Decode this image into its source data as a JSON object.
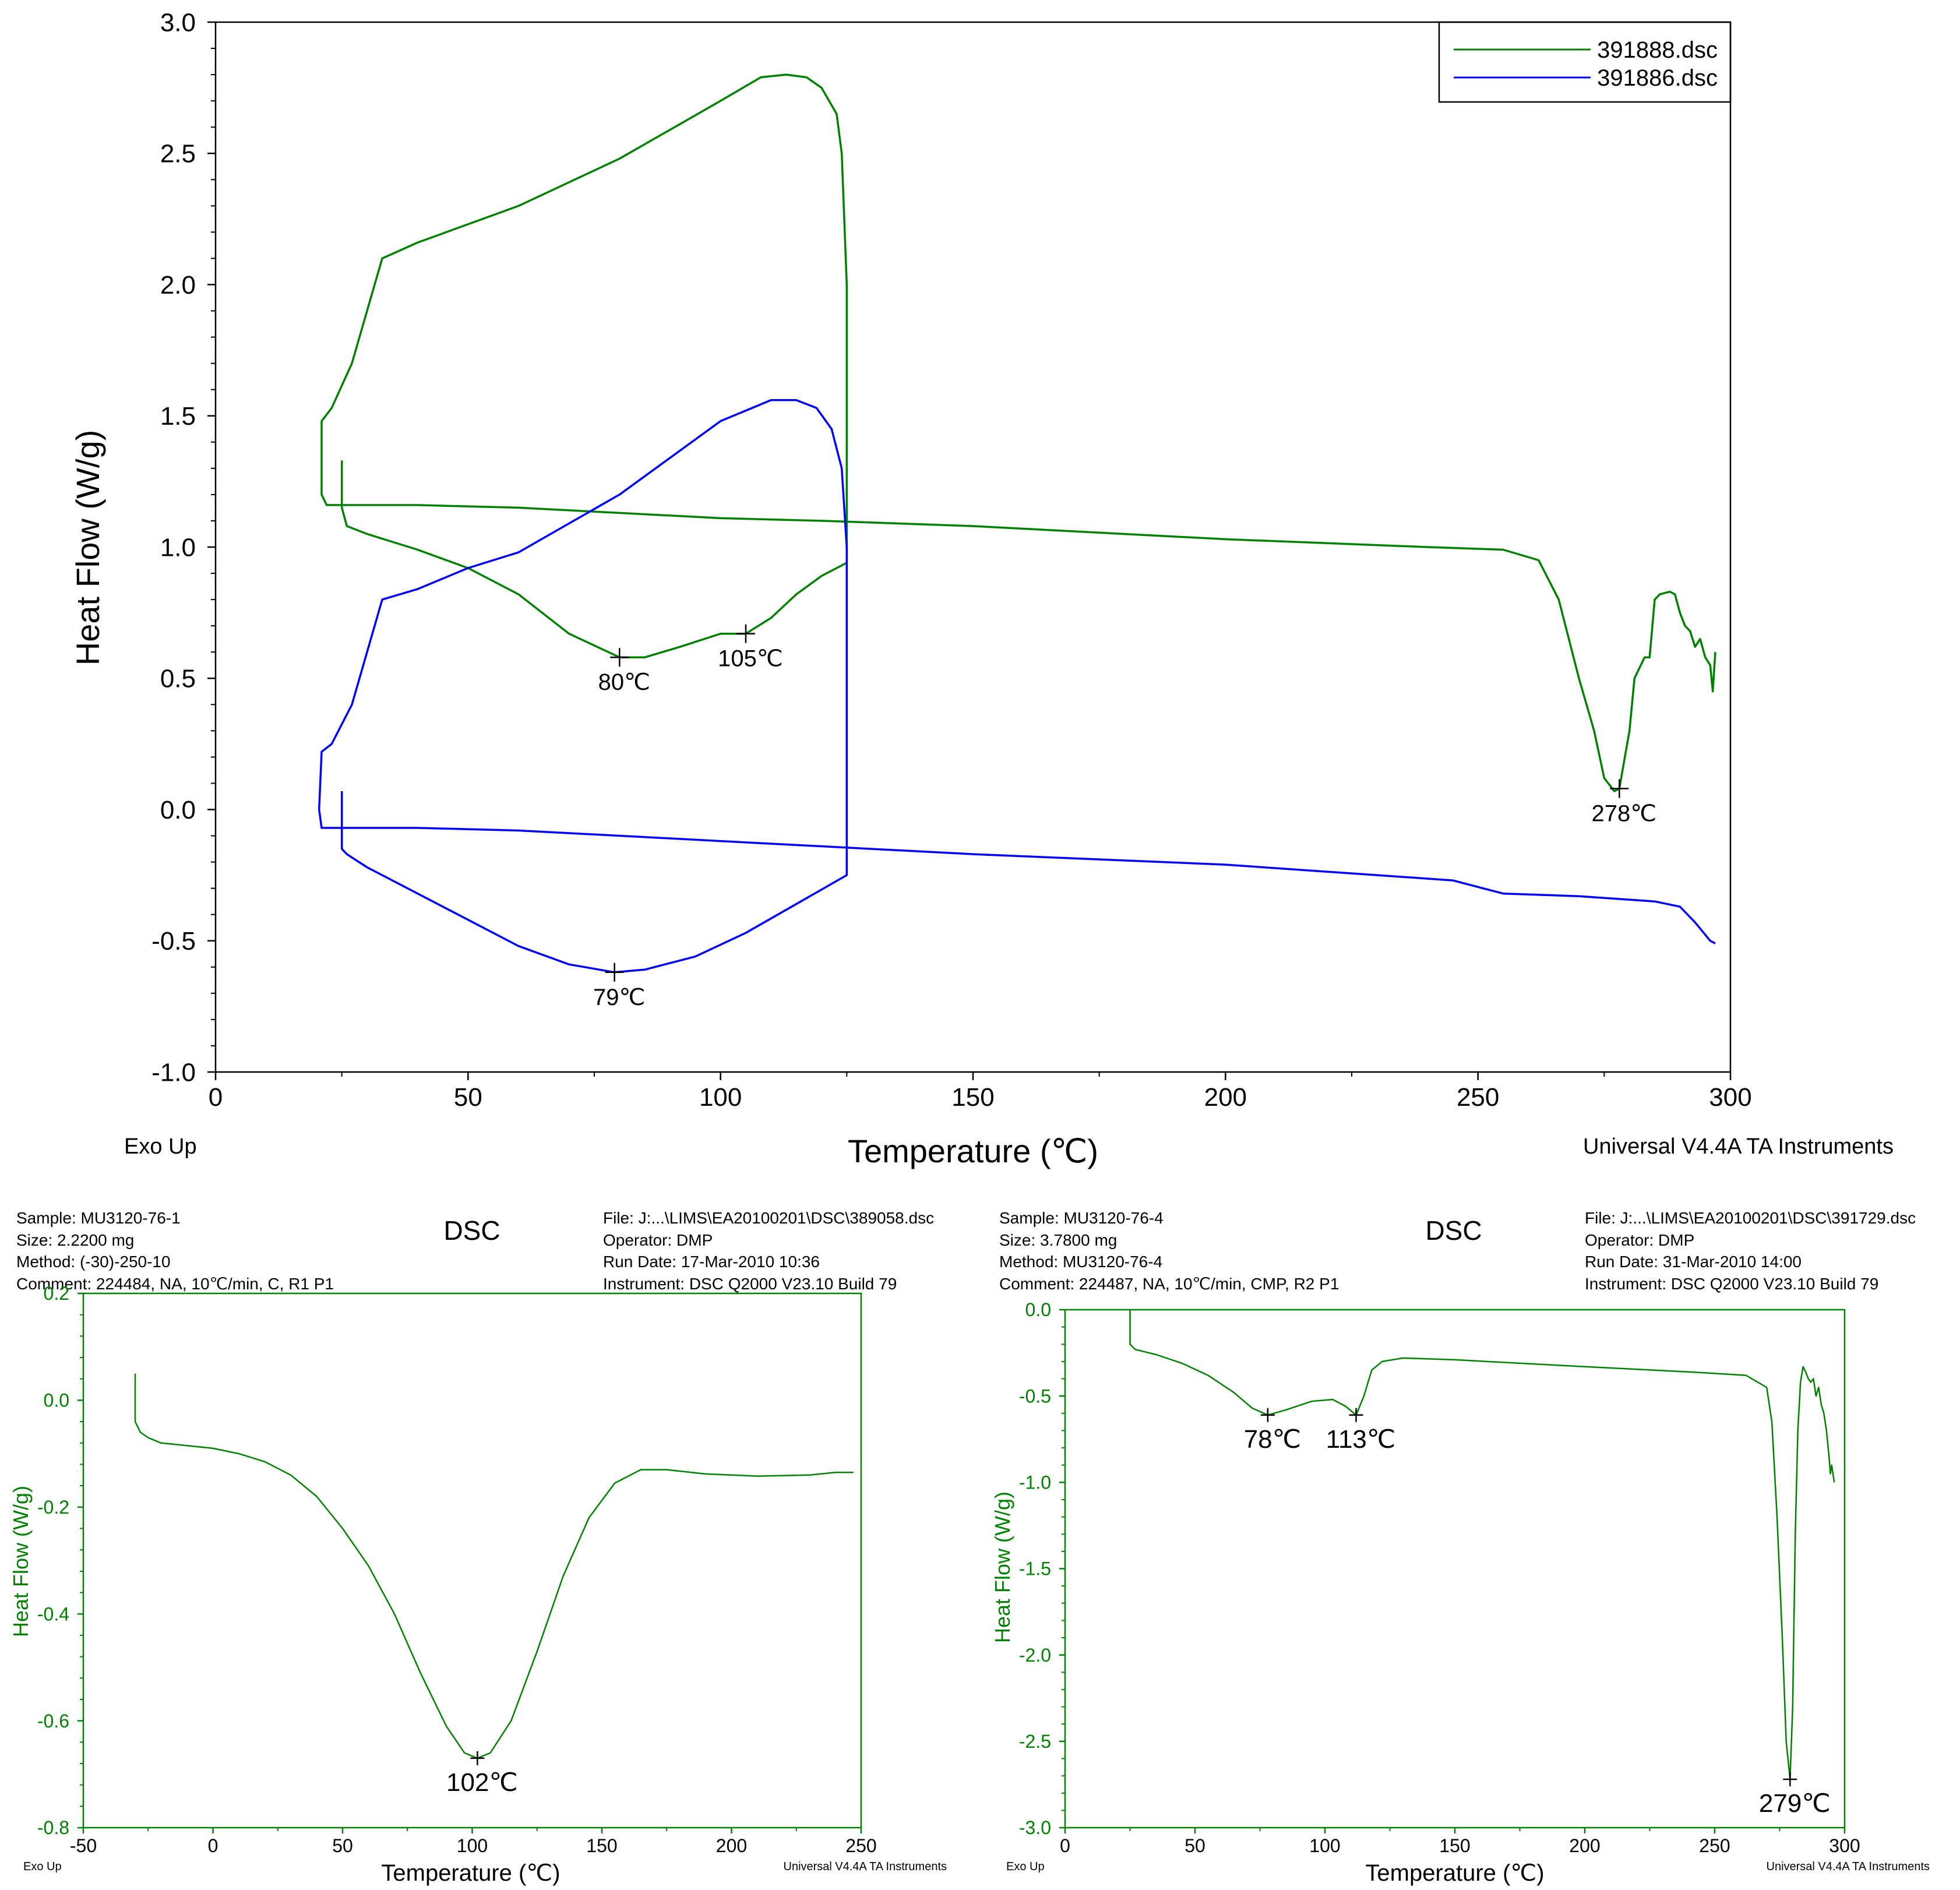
{
  "chart_data": [
    {
      "type": "line",
      "xlabel": "Temperature (℃)",
      "ylabel": "Heat Flow (W/g)",
      "xlim": [
        0,
        300
      ],
      "ylim": [
        -1.0,
        3.0
      ],
      "x_ticks": [
        "0",
        "50",
        "100",
        "150",
        "200",
        "250",
        "300"
      ],
      "y_ticks": [
        "-1.0",
        "-0.5",
        "0.0",
        "0.5",
        "1.0",
        "1.5",
        "2.0",
        "2.5",
        "3.0"
      ],
      "footer_left": "Exo Up",
      "footer_right": "Universal V4.4A TA Instruments",
      "legend_position": "top-right",
      "series": [
        {
          "name": "391888.dsc",
          "color": "#008000",
          "points": [
            [
              25,
              1.33
            ],
            [
              25,
              1.15
            ],
            [
              26,
              1.08
            ],
            [
              30,
              1.05
            ],
            [
              40,
              0.99
            ],
            [
              50,
              0.92
            ],
            [
              60,
              0.82
            ],
            [
              70,
              0.67
            ],
            [
              80,
              0.58
            ],
            [
              85,
              0.58
            ],
            [
              92,
              0.62
            ],
            [
              100,
              0.67
            ],
            [
              105,
              0.67
            ],
            [
              110,
              0.73
            ],
            [
              115,
              0.82
            ],
            [
              120,
              0.89
            ],
            [
              125,
              0.94
            ],
            [
              125,
              1.3
            ],
            [
              125,
              2.0
            ],
            [
              124,
              2.5
            ],
            [
              123,
              2.65
            ],
            [
              120,
              2.75
            ],
            [
              117,
              2.79
            ],
            [
              113,
              2.8
            ],
            [
              108,
              2.79
            ],
            [
              100,
              2.7
            ],
            [
              80,
              2.48
            ],
            [
              60,
              2.3
            ],
            [
              50,
              2.23
            ],
            [
              40,
              2.16
            ],
            [
              33,
              2.1
            ],
            [
              30,
              1.9
            ],
            [
              27,
              1.7
            ],
            [
              23,
              1.53
            ],
            [
              21,
              1.48
            ],
            [
              21,
              1.2
            ],
            [
              22,
              1.16
            ],
            [
              40,
              1.16
            ],
            [
              60,
              1.15
            ],
            [
              80,
              1.13
            ],
            [
              100,
              1.11
            ],
            [
              120,
              1.1
            ],
            [
              150,
              1.08
            ],
            [
              200,
              1.03
            ],
            [
              240,
              1.0
            ],
            [
              255,
              0.99
            ],
            [
              262,
              0.95
            ],
            [
              266,
              0.8
            ],
            [
              270,
              0.5
            ],
            [
              273,
              0.3
            ],
            [
              275,
              0.12
            ],
            [
              277,
              0.07
            ],
            [
              278,
              0.08
            ],
            [
              280,
              0.3
            ],
            [
              281,
              0.5
            ],
            [
              283,
              0.58
            ],
            [
              284,
              0.58
            ],
            [
              285,
              0.8
            ],
            [
              286,
              0.82
            ],
            [
              288,
              0.83
            ],
            [
              289,
              0.82
            ],
            [
              290,
              0.75
            ],
            [
              291,
              0.7
            ],
            [
              292,
              0.68
            ],
            [
              293,
              0.62
            ],
            [
              294,
              0.65
            ],
            [
              295,
              0.58
            ],
            [
              296,
              0.55
            ],
            [
              296.5,
              0.45
            ],
            [
              297,
              0.6
            ]
          ]
        },
        {
          "name": "391886.dsc",
          "color": "#0000ff",
          "points": [
            [
              25,
              0.07
            ],
            [
              25,
              -0.15
            ],
            [
              26,
              -0.17
            ],
            [
              30,
              -0.22
            ],
            [
              40,
              -0.32
            ],
            [
              50,
              -0.42
            ],
            [
              60,
              -0.52
            ],
            [
              70,
              -0.59
            ],
            [
              79,
              -0.62
            ],
            [
              85,
              -0.61
            ],
            [
              95,
              -0.56
            ],
            [
              105,
              -0.47
            ],
            [
              115,
              -0.36
            ],
            [
              125,
              -0.25
            ],
            [
              125,
              0.3
            ],
            [
              125,
              1.0
            ],
            [
              124,
              1.3
            ],
            [
              122,
              1.45
            ],
            [
              119,
              1.53
            ],
            [
              115,
              1.56
            ],
            [
              110,
              1.56
            ],
            [
              100,
              1.48
            ],
            [
              80,
              1.2
            ],
            [
              60,
              0.98
            ],
            [
              50,
              0.92
            ],
            [
              40,
              0.84
            ],
            [
              33,
              0.8
            ],
            [
              30,
              0.6
            ],
            [
              27,
              0.4
            ],
            [
              23,
              0.25
            ],
            [
              21,
              0.22
            ],
            [
              20.5,
              0.0
            ],
            [
              21,
              -0.07
            ],
            [
              40,
              -0.07
            ],
            [
              60,
              -0.08
            ],
            [
              80,
              -0.1
            ],
            [
              100,
              -0.12
            ],
            [
              150,
              -0.17
            ],
            [
              200,
              -0.21
            ],
            [
              245,
              -0.27
            ],
            [
              255,
              -0.32
            ],
            [
              270,
              -0.33
            ],
            [
              285,
              -0.35
            ],
            [
              290,
              -0.37
            ],
            [
              293,
              -0.43
            ],
            [
              296,
              -0.5
            ],
            [
              297,
              -0.51
            ]
          ]
        }
      ],
      "annotations": [
        {
          "label": "80℃",
          "x": 80,
          "y": 0.58,
          "series": "391888.dsc"
        },
        {
          "label": "105℃",
          "x": 105,
          "y": 0.67,
          "series": "391888.dsc"
        },
        {
          "label": "278℃",
          "x": 278,
          "y": 0.08,
          "series": "391888.dsc"
        },
        {
          "label": "79℃",
          "x": 79,
          "y": -0.62,
          "series": "391886.dsc"
        }
      ]
    },
    {
      "type": "line",
      "title": "DSC",
      "header": {
        "sample": "Sample: MU3120-76-1",
        "size": "Size:  2.2200 mg",
        "method": "Method: (-30)-250-10",
        "comment": "Comment: 224484, NA, 10℃/min, C, R1 P1",
        "file": "File: J:...\\LIMS\\EA20100201\\DSC\\389058.dsc",
        "operator": "Operator: DMP",
        "run_date": "Run Date: 17-Mar-2010 10:36",
        "instrument": "Instrument: DSC Q2000 V23.10 Build 79"
      },
      "xlabel": "Temperature (℃)",
      "ylabel": "Heat Flow (W/g)",
      "xlim": [
        -50,
        250
      ],
      "ylim": [
        -0.8,
        0.2
      ],
      "x_ticks": [
        "-50",
        "0",
        "50",
        "100",
        "150",
        "200",
        "250"
      ],
      "y_ticks": [
        "-0.8",
        "-0.6",
        "-0.4",
        "-0.2",
        "0.0",
        "0.2"
      ],
      "footer_left": "Exo Up",
      "footer_right": "Universal V4.4A TA Instruments",
      "series": [
        {
          "color": "#008000",
          "points": [
            [
              -30,
              0.05
            ],
            [
              -30,
              -0.04
            ],
            [
              -28,
              -0.06
            ],
            [
              -25,
              -0.07
            ],
            [
              -20,
              -0.08
            ],
            [
              -10,
              -0.085
            ],
            [
              0,
              -0.09
            ],
            [
              10,
              -0.1
            ],
            [
              20,
              -0.115
            ],
            [
              30,
              -0.14
            ],
            [
              40,
              -0.18
            ],
            [
              50,
              -0.24
            ],
            [
              60,
              -0.31
            ],
            [
              70,
              -0.4
            ],
            [
              80,
              -0.51
            ],
            [
              90,
              -0.61
            ],
            [
              97,
              -0.66
            ],
            [
              102,
              -0.67
            ],
            [
              107,
              -0.66
            ],
            [
              115,
              -0.6
            ],
            [
              125,
              -0.47
            ],
            [
              135,
              -0.33
            ],
            [
              145,
              -0.22
            ],
            [
              155,
              -0.155
            ],
            [
              165,
              -0.13
            ],
            [
              175,
              -0.13
            ],
            [
              190,
              -0.138
            ],
            [
              210,
              -0.142
            ],
            [
              230,
              -0.14
            ],
            [
              240,
              -0.135
            ],
            [
              247,
              -0.135
            ]
          ]
        }
      ],
      "annotations": [
        {
          "label": "102℃",
          "x": 102,
          "y": -0.67
        }
      ]
    },
    {
      "type": "line",
      "title": "DSC",
      "header": {
        "sample": "Sample: MU3120-76-4",
        "size": "Size:  3.7800 mg",
        "method": "Method: MU3120-76-4",
        "comment": "Comment: 224487, NA,  10℃/min, CMP, R2 P1",
        "file": "File: J:...\\LIMS\\EA20100201\\DSC\\391729.dsc",
        "operator": "Operator: DMP",
        "run_date": "Run Date: 31-Mar-2010 14:00",
        "instrument": "Instrument: DSC Q2000 V23.10 Build 79"
      },
      "xlabel": "Temperature (℃)",
      "ylabel": "Heat Flow (W/g)",
      "xlim": [
        0,
        300
      ],
      "ylim": [
        -3.0,
        0.0
      ],
      "x_ticks": [
        "0",
        "50",
        "100",
        "150",
        "200",
        "250",
        "300"
      ],
      "y_ticks": [
        "-3.0",
        "-2.5",
        "-2.0",
        "-1.5",
        "-1.0",
        "-0.5",
        "0.0"
      ],
      "footer_left": "Exo Up",
      "footer_right": "Universal V4.4A TA Instruments",
      "series": [
        {
          "color": "#008000",
          "points": [
            [
              25,
              0.0
            ],
            [
              25,
              -0.2
            ],
            [
              27,
              -0.23
            ],
            [
              35,
              -0.26
            ],
            [
              45,
              -0.31
            ],
            [
              55,
              -0.38
            ],
            [
              65,
              -0.48
            ],
            [
              72,
              -0.57
            ],
            [
              78,
              -0.61
            ],
            [
              85,
              -0.58
            ],
            [
              95,
              -0.53
            ],
            [
              103,
              -0.52
            ],
            [
              108,
              -0.56
            ],
            [
              112,
              -0.61
            ],
            [
              115,
              -0.5
            ],
            [
              118,
              -0.35
            ],
            [
              122,
              -0.3
            ],
            [
              130,
              -0.28
            ],
            [
              150,
              -0.29
            ],
            [
              200,
              -0.33
            ],
            [
              240,
              -0.36
            ],
            [
              262,
              -0.38
            ],
            [
              270,
              -0.45
            ],
            [
              272,
              -0.65
            ],
            [
              274,
              -1.2
            ],
            [
              276,
              -1.9
            ],
            [
              277.5,
              -2.5
            ],
            [
              279,
              -2.72
            ],
            [
              280,
              -2.3
            ],
            [
              281,
              -1.3
            ],
            [
              282,
              -0.7
            ],
            [
              283,
              -0.42
            ],
            [
              284,
              -0.33
            ],
            [
              285,
              -0.36
            ],
            [
              286,
              -0.4
            ],
            [
              287,
              -0.42
            ],
            [
              288,
              -0.4
            ],
            [
              289,
              -0.5
            ],
            [
              290,
              -0.45
            ],
            [
              291,
              -0.55
            ],
            [
              292,
              -0.6
            ],
            [
              293,
              -0.7
            ],
            [
              294,
              -0.85
            ],
            [
              294.5,
              -0.95
            ],
            [
              295,
              -0.9
            ],
            [
              296,
              -1.0
            ]
          ]
        }
      ],
      "annotations": [
        {
          "label": "78℃",
          "x": 78,
          "y": -0.61
        },
        {
          "label": "113℃",
          "x": 112,
          "y": -0.61
        },
        {
          "label": "279℃",
          "x": 279,
          "y": -2.72
        }
      ]
    }
  ]
}
